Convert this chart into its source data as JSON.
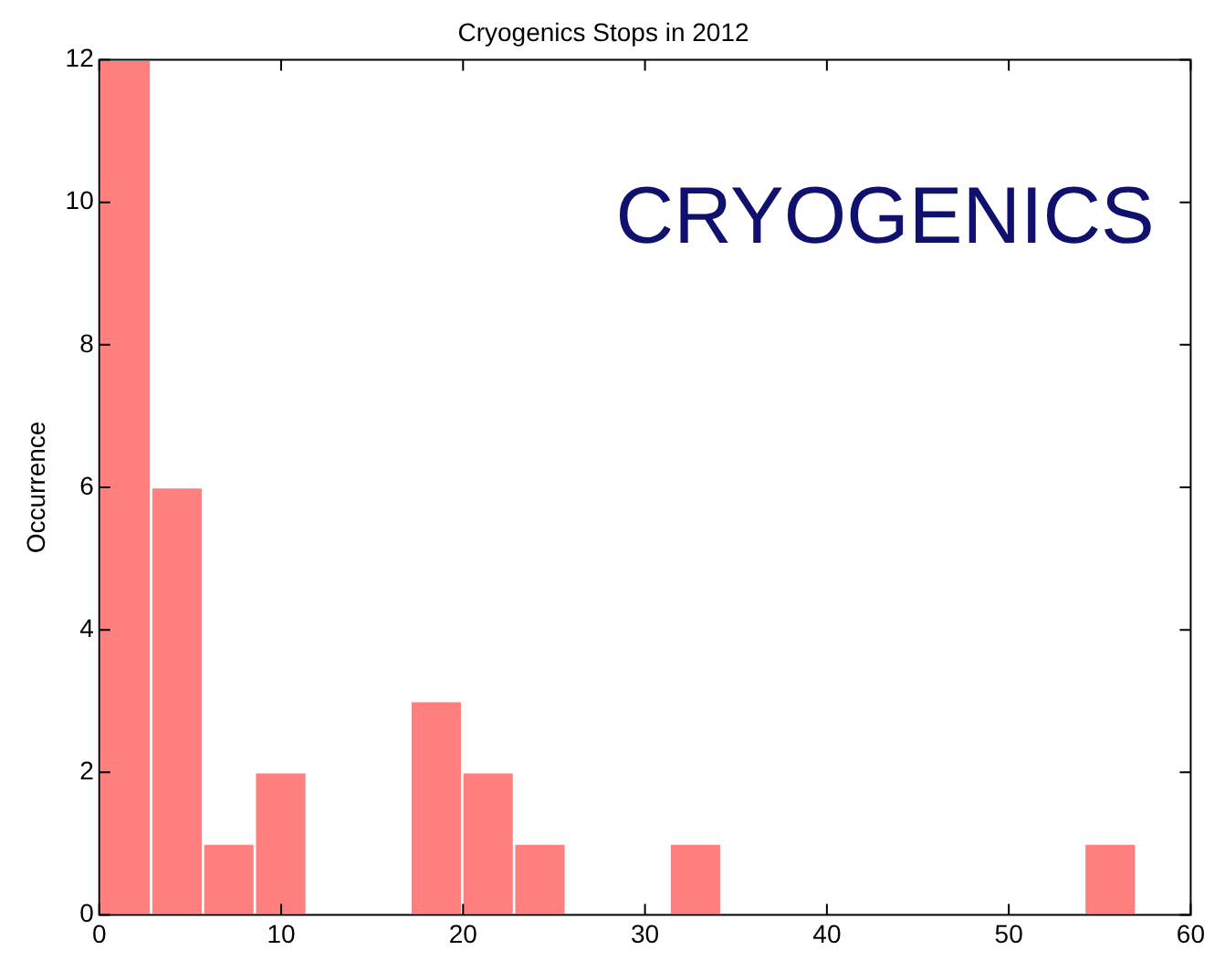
{
  "chart_data": {
    "type": "histogram",
    "title": "Cryogenics Stops in 2012",
    "ylabel": "Occurrence",
    "bins": [
      0,
      2.85,
      5.7,
      8.55,
      11.4,
      14.25,
      17.1,
      19.95,
      22.8,
      25.65,
      28.5,
      31.35,
      34.2,
      37.05,
      39.9,
      42.75,
      45.6,
      48.45,
      51.3,
      54.15,
      57
    ],
    "values": [
      12,
      6,
      1,
      2,
      0,
      0,
      3,
      2,
      1,
      0,
      0,
      1,
      0,
      0,
      0,
      0,
      0,
      0,
      0,
      1
    ],
    "color": "#ff7f7f",
    "xlim": [
      0,
      60
    ],
    "xticks": [
      0,
      10,
      20,
      30,
      40,
      50,
      60
    ],
    "ylim": [
      0,
      12
    ],
    "yticks": [
      0,
      2,
      4,
      6,
      8,
      10,
      12
    ],
    "grid": false,
    "legend": false,
    "annotations": [
      "CRYOGENICS"
    ]
  }
}
